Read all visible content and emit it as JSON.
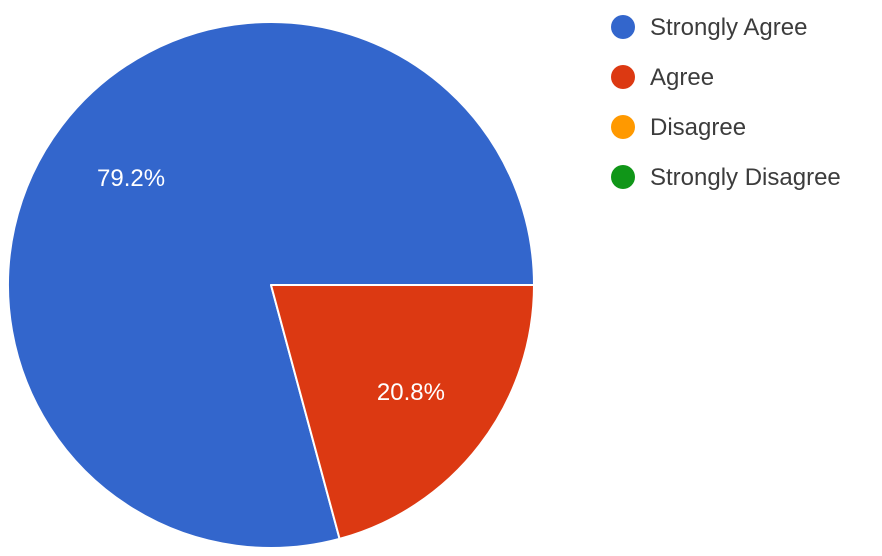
{
  "chart_data": {
    "type": "pie",
    "categories": [
      "Strongly Agree",
      "Agree",
      "Disagree",
      "Strongly Disagree"
    ],
    "values": [
      79.2,
      20.8,
      0,
      0
    ],
    "data_labels": [
      "79.2%",
      "20.8%",
      "",
      ""
    ],
    "colors": [
      "#3366cc",
      "#dc3912",
      "#ff9900",
      "#109618"
    ],
    "legend_position": "right",
    "title": ""
  }
}
